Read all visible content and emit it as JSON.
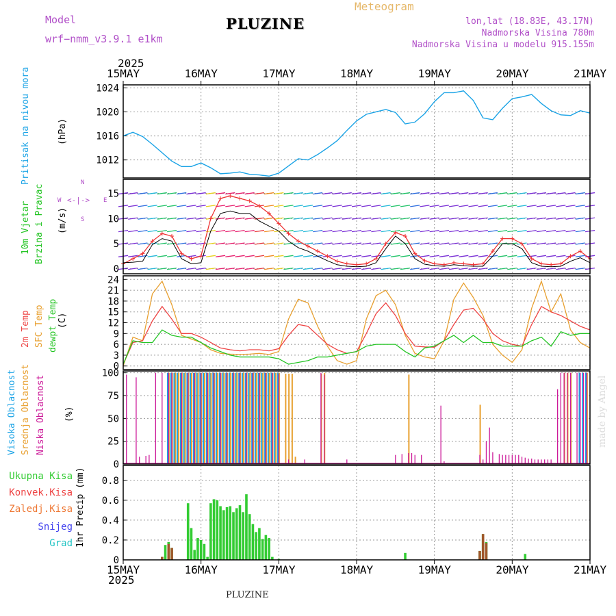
{
  "header": {
    "model_label": "Model",
    "model_name": "wrf−nmm_v3.9.1  e1km",
    "title": "PLUZINE",
    "product": "Meteogram",
    "coords": "lon,lat (18.83E, 43.17N)",
    "altitude": "Nadmorska Visina 780m",
    "model_altitude": "Nadmorska Visina u modelu 915.155m"
  },
  "footer": {
    "station": "PLUZINE",
    "credit": "made by Angel"
  },
  "time_axis": {
    "year": "2025",
    "ticks": [
      "15MAY",
      "16MAY",
      "17MAY",
      "18MAY",
      "19MAY",
      "20MAY",
      "21MAY"
    ]
  },
  "colors": {
    "pressure": "#1aa3e6",
    "wind_speed": "#000000",
    "gust": "#ee3333",
    "temp_2m": "#ee4444",
    "temp_sfc": "#e8a030",
    "dewpoint": "#22c422",
    "cloud_high": "#1aa3e6",
    "cloud_mid": "#e8a030",
    "cloud_low": "#cc1a99",
    "precip_total": "#33cc33",
    "precip_conv": "#ee4444",
    "precip_frz": "#ee7733",
    "snow": "#4444ee",
    "hail": "#22c4c4"
  },
  "labels": {
    "pressure_name": "Pritisak na nivou mora",
    "pressure_unit": "(hPa)",
    "wind_name1": "10m Vjetar",
    "wind_name2": "Brzina i Pravac",
    "wind_unit": "(m/s)",
    "compass_w": "W",
    "compass_e": "E",
    "compass_n": "N",
    "compass_s": "S",
    "temp_name1": "2m Temp",
    "temp_name2": "SFC Temp",
    "temp_name3": "dewpt Temp",
    "temp_unit": "(C)",
    "cloud_name1": "Visoka Oblacnost",
    "cloud_name2": "Srednja Oblacnost",
    "cloud_name3": "Niska Oblacnost",
    "cloud_unit": "(%)",
    "precip_name": "1hr Precip (mm)",
    "legend_total": "Ukupna Kisa",
    "legend_conv": "Konvek.Kisa",
    "legend_frz": "Zaledj.Kisa",
    "legend_snow": "Snijeg",
    "legend_hail": "Grad"
  },
  "chart_data": [
    {
      "type": "line",
      "ylabel": "(hPa)",
      "ylim": [
        1009,
        1024.5
      ],
      "yticks": [
        1012,
        1016,
        1020,
        1024
      ],
      "x_hours": [
        0,
        3,
        6,
        9,
        12,
        15,
        18,
        21,
        24,
        27,
        30,
        33,
        36,
        39,
        42,
        45,
        48,
        51,
        54,
        57,
        60,
        63,
        66,
        69,
        72,
        75,
        78,
        81,
        84,
        87,
        90,
        93,
        96,
        99,
        102,
        105,
        108,
        111,
        114,
        117,
        120,
        123,
        126,
        129,
        132,
        135,
        138,
        141,
        144
      ],
      "series": [
        {
          "values": [
            1016.0,
            1016.6,
            1015.9,
            1014.6,
            1013.2,
            1011.8,
            1010.9,
            1010.9,
            1011.5,
            1010.7,
            1009.7,
            1009.8,
            1010.0,
            1009.6,
            1009.5,
            1009.3,
            1009.8,
            1011.0,
            1012.2,
            1012.0,
            1012.9,
            1014.0,
            1015.2,
            1016.9,
            1018.5,
            1019.6,
            1020.0,
            1020.4,
            1019.9,
            1018.0,
            1018.3,
            1019.7,
            1021.7,
            1023.2,
            1023.2,
            1023.5,
            1021.9,
            1019.0,
            1018.7,
            1020.6,
            1022.2,
            1022.5,
            1022.9,
            1021.4,
            1020.2,
            1019.5,
            1019.4,
            1020.2,
            1019.8
          ]
        }
      ]
    },
    {
      "type": "line",
      "ylabel": "(m/s)",
      "ylim": [
        -1,
        17.8
      ],
      "yticks": [
        0,
        5,
        10,
        15
      ],
      "x_hours": [
        0,
        3,
        6,
        9,
        12,
        15,
        18,
        21,
        24,
        27,
        30,
        33,
        36,
        39,
        42,
        45,
        48,
        51,
        54,
        57,
        60,
        63,
        66,
        69,
        72,
        75,
        78,
        81,
        84,
        87,
        90,
        93,
        96,
        99,
        102,
        105,
        108,
        111,
        114,
        117,
        120,
        123,
        126,
        129,
        132,
        135,
        138,
        141,
        144
      ],
      "series": [
        {
          "values": [
            1.2,
            1.3,
            1.5,
            4.8,
            6.0,
            5.5,
            2.0,
            1.0,
            1.2,
            7.5,
            11.0,
            11.5,
            11.0,
            11.0,
            9.5,
            8.5,
            7.5,
            5.5,
            4.2,
            3.5,
            2.5,
            1.6,
            0.8,
            0.5,
            0.4,
            0.5,
            1.2,
            4.0,
            6.5,
            5.0,
            2.0,
            0.9,
            0.6,
            0.5,
            0.8,
            0.6,
            0.5,
            0.5,
            2.5,
            5.0,
            5.0,
            4.0,
            1.2,
            0.5,
            0.4,
            0.5,
            1.5,
            2.2,
            1.2
          ]
        },
        {
          "values": [
            1.0,
            2.0,
            3.0,
            5.5,
            7.0,
            6.5,
            3.0,
            2.0,
            2.5,
            10.0,
            14.0,
            14.5,
            14.0,
            13.5,
            12.5,
            11.0,
            9.0,
            7.0,
            5.5,
            4.5,
            3.5,
            2.5,
            1.5,
            1.0,
            0.8,
            1.0,
            2.0,
            5.0,
            7.2,
            6.5,
            3.0,
            1.6,
            1.0,
            0.8,
            1.2,
            1.0,
            0.8,
            1.0,
            3.5,
            6.0,
            6.0,
            5.0,
            2.0,
            1.0,
            0.8,
            1.0,
            2.5,
            3.5,
            2.0
          ]
        }
      ]
    },
    {
      "type": "line",
      "ylabel": "(C)",
      "ylim": [
        -1,
        25
      ],
      "yticks": [
        0,
        3,
        6,
        9,
        12,
        15,
        18,
        21,
        24
      ],
      "x_hours": [
        0,
        3,
        6,
        9,
        12,
        15,
        18,
        21,
        24,
        27,
        30,
        33,
        36,
        39,
        42,
        45,
        48,
        51,
        54,
        57,
        60,
        63,
        66,
        69,
        72,
        75,
        78,
        81,
        84,
        87,
        90,
        93,
        96,
        99,
        102,
        105,
        108,
        111,
        114,
        117,
        120,
        123,
        126,
        129,
        132,
        135,
        138,
        141,
        144
      ],
      "series": [
        {
          "values": [
            0.5,
            6.5,
            7.0,
            12.5,
            16.5,
            13.0,
            9.0,
            9.0,
            8.0,
            6.5,
            5.0,
            4.5,
            4.2,
            4.5,
            4.5,
            4.2,
            4.8,
            8.5,
            11.5,
            11.0,
            8.5,
            6.0,
            4.5,
            3.5,
            4.0,
            9.0,
            14.5,
            17.5,
            14.0,
            9.0,
            5.5,
            5.3,
            5.2,
            7.0,
            11.5,
            15.5,
            16.0,
            13.0,
            9.0,
            7.0,
            6.0,
            5.5,
            11.5,
            16.5,
            15.0,
            14.0,
            12.5,
            11.0,
            10.0
          ]
        },
        {
          "values": [
            0.0,
            8.0,
            7.0,
            20.0,
            23.5,
            17.0,
            8.5,
            7.5,
            6.5,
            4.5,
            3.5,
            3.3,
            3.2,
            3.3,
            3.5,
            3.2,
            4.0,
            13.0,
            18.5,
            17.5,
            11.0,
            5.5,
            1.5,
            0.5,
            1.5,
            13.0,
            19.5,
            21.0,
            17.0,
            8.5,
            3.5,
            2.5,
            2.0,
            7.0,
            18.5,
            23.0,
            19.0,
            14.0,
            6.0,
            3.0,
            1.0,
            4.5,
            16.0,
            23.5,
            15.0,
            20.0,
            10.0,
            6.5,
            5.0
          ]
        },
        {
          "values": [
            0.5,
            7.0,
            6.5,
            6.5,
            10.0,
            8.5,
            8.0,
            8.0,
            6.5,
            5.0,
            4.0,
            3.0,
            2.5,
            2.5,
            2.5,
            2.5,
            2.0,
            0.5,
            1.0,
            1.5,
            2.5,
            2.5,
            3.0,
            3.5,
            4.0,
            5.5,
            6.0,
            6.0,
            6.0,
            4.0,
            2.5,
            5.0,
            5.5,
            7.0,
            8.5,
            6.5,
            8.5,
            6.5,
            6.5,
            5.5,
            5.5,
            5.5,
            7.0,
            8.0,
            5.5,
            9.5,
            8.5,
            9.0,
            9.0
          ]
        }
      ]
    },
    {
      "type": "bar",
      "ylabel": "(%)",
      "ylim": [
        0,
        102
      ],
      "yticks": [
        0,
        25,
        50,
        75,
        100
      ],
      "low_bars_hours": [
        1,
        4,
        5,
        7,
        8,
        10,
        12,
        14,
        15,
        18,
        20,
        22,
        24,
        26,
        28,
        30,
        32,
        34,
        36,
        38,
        40,
        42,
        44,
        46,
        48,
        51,
        56,
        61,
        62,
        69,
        84,
        86,
        88,
        89,
        90,
        92,
        98,
        99,
        110,
        111,
        112,
        113,
        114,
        116,
        117,
        118,
        119,
        120,
        121,
        122,
        123,
        124,
        125,
        126,
        127,
        128,
        129,
        130,
        131,
        132,
        134,
        135,
        136,
        137,
        138,
        140,
        141,
        142,
        143
      ],
      "low_bars_values": [
        98,
        95,
        8,
        9,
        10,
        100,
        100,
        100,
        100,
        100,
        100,
        100,
        100,
        100,
        100,
        100,
        100,
        100,
        100,
        100,
        100,
        100,
        100,
        100,
        99,
        5,
        5,
        100,
        98,
        5,
        10,
        11,
        12,
        12,
        10,
        10,
        64,
        3,
        10,
        5,
        25,
        40,
        13,
        11,
        10,
        10,
        10,
        10,
        10,
        10,
        8,
        7,
        6,
        6,
        5,
        5,
        5,
        5,
        5,
        5,
        82,
        100,
        100,
        100,
        100,
        100,
        100,
        100,
        100
      ],
      "mid_bars_hours": [
        14,
        15,
        16,
        17,
        18,
        19,
        20,
        21,
        22,
        23,
        24,
        25,
        26,
        27,
        28,
        29,
        30,
        31,
        32,
        33,
        34,
        35,
        36,
        37,
        38,
        39,
        40,
        41,
        42,
        43,
        44,
        45,
        46,
        47,
        48,
        50,
        51,
        52,
        53,
        61,
        62,
        88,
        110,
        136,
        137,
        138,
        143
      ],
      "mid_bars_values": [
        100,
        100,
        100,
        100,
        100,
        100,
        100,
        100,
        100,
        100,
        100,
        100,
        100,
        100,
        100,
        100,
        100,
        100,
        100,
        100,
        100,
        100,
        100,
        100,
        100,
        100,
        100,
        100,
        100,
        100,
        100,
        100,
        100,
        100,
        100,
        99,
        99,
        99,
        8,
        99,
        100,
        98,
        65,
        100,
        100,
        100,
        100
      ],
      "high_bars_hours": [
        14,
        15,
        16,
        17,
        18,
        19,
        20,
        21,
        22,
        23,
        24,
        25,
        26,
        27,
        28,
        29,
        30,
        31,
        32,
        33,
        34,
        35,
        36,
        37,
        38,
        39,
        40,
        41,
        42,
        43,
        44,
        45,
        46,
        47,
        48,
        141,
        142,
        143
      ],
      "high_bars_values": [
        100,
        100,
        100,
        100,
        100,
        100,
        100,
        100,
        100,
        100,
        100,
        100,
        100,
        100,
        100,
        100,
        100,
        100,
        100,
        100,
        100,
        100,
        100,
        100,
        100,
        100,
        100,
        100,
        100,
        100,
        100,
        100,
        100,
        100,
        100,
        100,
        100,
        100
      ]
    },
    {
      "type": "bar",
      "ylabel": "1hr Precip (mm)",
      "ylim": [
        0,
        0.95
      ],
      "yticks": [
        0,
        0.2,
        0.4,
        0.6,
        0.8
      ],
      "total_hours": [
        12,
        13,
        14,
        15,
        20,
        21,
        22,
        23,
        24,
        25,
        26,
        27,
        28,
        29,
        30,
        31,
        32,
        33,
        34,
        35,
        36,
        37,
        38,
        39,
        40,
        41,
        42,
        43,
        44,
        45,
        46,
        48,
        87,
        110,
        111,
        112,
        124
      ],
      "total_values": [
        0.03,
        0.15,
        0.18,
        0.12,
        0.57,
        0.32,
        0.1,
        0.22,
        0.2,
        0.16,
        0.03,
        0.57,
        0.61,
        0.6,
        0.54,
        0.5,
        0.53,
        0.54,
        0.48,
        0.52,
        0.55,
        0.48,
        0.66,
        0.46,
        0.36,
        0.28,
        0.32,
        0.21,
        0.25,
        0.22,
        0.03,
        0.01,
        0.07,
        0.09,
        0.26,
        0.18,
        0.06
      ],
      "conv_hours": [
        12,
        14,
        15,
        110,
        111,
        112
      ],
      "conv_values": [
        0.03,
        0.16,
        0.12,
        0.09,
        0.26,
        0.17
      ]
    }
  ]
}
